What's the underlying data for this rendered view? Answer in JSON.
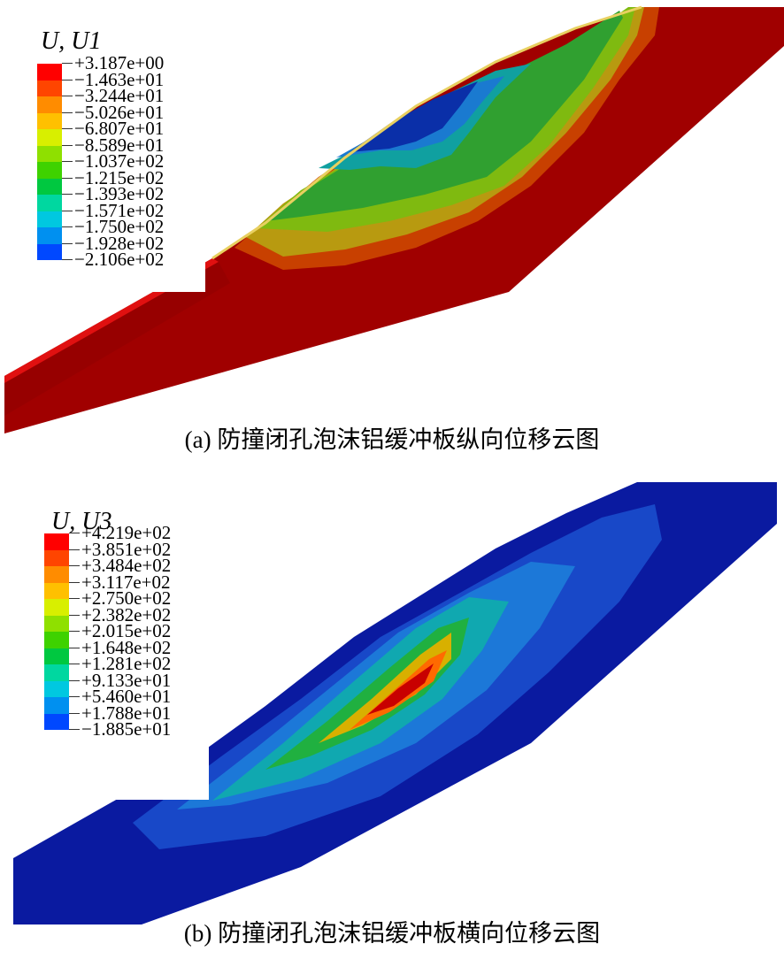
{
  "panels": [
    {
      "legend_title": "U, U1",
      "legend_levels": [
        "+3.187e+00",
        "−1.463e+01",
        "−3.244e+01",
        "−5.026e+01",
        "−6.807e+01",
        "−8.589e+01",
        "−1.037e+02",
        "−1.215e+02",
        "−1.393e+02",
        "−1.571e+02",
        "−1.750e+02",
        "−1.928e+02",
        "−2.106e+02"
      ],
      "legend_colors": [
        "#ff0000",
        "#ff4500",
        "#ff8c00",
        "#ffc000",
        "#d8ef00",
        "#8fe000",
        "#3ed200",
        "#00c840",
        "#00d7a0",
        "#00c8e0",
        "#0090f0",
        "#0048ff",
        "#0000e0"
      ],
      "caption": "(a) 防撞闭孔泡沫铝缓冲板纵向位移云图"
    },
    {
      "legend_title": "U, U3",
      "legend_levels": [
        "+4.219e+02",
        "+3.851e+02",
        "+3.484e+02",
        "+3.117e+02",
        "+2.750e+02",
        "+2.382e+02",
        "+2.015e+02",
        "+1.648e+02",
        "+1.281e+02",
        "+9.133e+01",
        "+5.460e+01",
        "+1.788e+01",
        "−1.885e+01"
      ],
      "legend_colors": [
        "#ff0000",
        "#ff4500",
        "#ff8c00",
        "#ffc000",
        "#d8ef00",
        "#8fe000",
        "#3ed200",
        "#00c840",
        "#00d7a0",
        "#00c8e0",
        "#0090f0",
        "#0048ff",
        "#0000e0"
      ],
      "caption": "(b) 防撞闭孔泡沫铝缓冲板横向位移云图"
    }
  ]
}
